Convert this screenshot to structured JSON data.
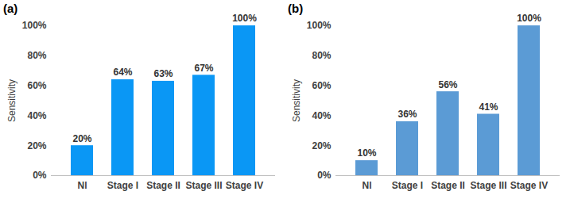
{
  "chart_data": [
    {
      "type": "bar",
      "title": "(a)",
      "y_label": "Sensitivity",
      "categories": [
        "Nl",
        "Stage I",
        "Stage II",
        "Stage III",
        "Stage IV"
      ],
      "values": [
        20,
        64,
        63,
        67,
        100
      ],
      "value_labels": [
        "20%",
        "64%",
        "63%",
        "67%",
        "100%"
      ],
      "color": "#0a97f5",
      "ylim": [
        0,
        100
      ],
      "yticks": [
        {
          "value": 0,
          "label": "0%"
        },
        {
          "value": 20,
          "label": "20%"
        },
        {
          "value": 40,
          "label": "40%"
        },
        {
          "value": 60,
          "label": "60%"
        },
        {
          "value": 80,
          "label": "80%"
        },
        {
          "value": 100,
          "label": "100%"
        }
      ],
      "grid": false,
      "data_labels": true
    },
    {
      "type": "bar",
      "title": "(b)",
      "y_label": "Sensitivity",
      "categories": [
        "Nl",
        "Stage I",
        "Stage II",
        "Stage III",
        "Stage IV"
      ],
      "values": [
        10,
        36,
        56,
        41,
        100
      ],
      "value_labels": [
        "10%",
        "36%",
        "56%",
        "41%",
        "100%"
      ],
      "color": "#5b9bd5",
      "ylim": [
        0,
        100
      ],
      "yticks": [
        {
          "value": 0,
          "label": "0%"
        },
        {
          "value": 20,
          "label": "20%"
        },
        {
          "value": 40,
          "label": "40%"
        },
        {
          "value": 60,
          "label": "60%"
        },
        {
          "value": 80,
          "label": "80%"
        },
        {
          "value": 100,
          "label": "100%"
        }
      ],
      "grid": false,
      "data_labels": true
    }
  ]
}
